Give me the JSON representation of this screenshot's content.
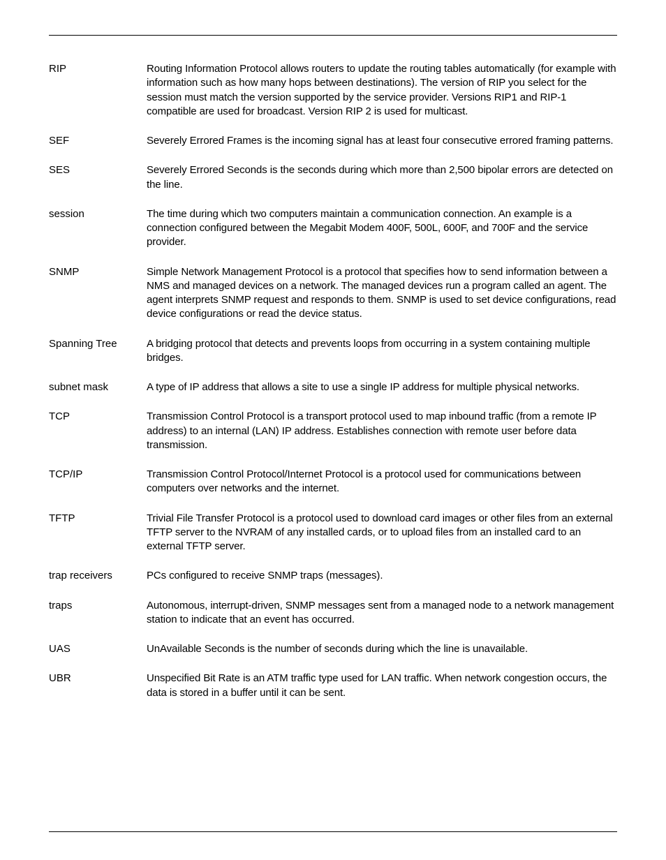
{
  "glossary": [
    {
      "term": "RIP",
      "definition": "Routing Information Protocol allows routers to update the routing tables automatically (for example with information such as how many hops between destinations). The version of RIP you select for the session must match the version supported by the service provider. Versions RIP1 and RIP-1 compatible are used for broadcast. Version RIP 2 is used for multicast."
    },
    {
      "term": "SEF",
      "definition": "Severely Errored Frames is the incoming signal has at least four consecutive errored framing patterns."
    },
    {
      "term": "SES",
      "definition": "Severely Errored Seconds is the seconds during which more than 2,500 bipolar errors are detected on the line."
    },
    {
      "term": "session",
      "definition": "The time during which two computers maintain a communication connection. An example is a connection configured between the Megabit Modem 400F, 500L, 600F, and 700F and the service provider."
    },
    {
      "term": "SNMP",
      "definition": "Simple Network Management Protocol is a protocol that specifies how to send information between a NMS and managed devices on a network. The managed devices run a program called an agent. The agent interprets SNMP request and responds to them. SNMP is used to set device configurations, read device configurations or read the device status."
    },
    {
      "term": "Spanning Tree",
      "definition": "A bridging protocol that detects and prevents loops from occurring in a system containing multiple bridges."
    },
    {
      "term": "subnet mask",
      "definition": "A type of IP address that allows a site to use a single IP address for multiple physical networks."
    },
    {
      "term": "TCP",
      "definition": "Transmission Control Protocol is a transport protocol used to map inbound traffic (from a remote IP address) to an internal (LAN) IP address. Establishes connection with remote user before data transmission."
    },
    {
      "term": "TCP/IP",
      "definition": "Transmission Control Protocol/Internet Protocol is a protocol used for communications between computers over networks and the internet."
    },
    {
      "term": "TFTP",
      "definition": "Trivial File Transfer Protocol is a protocol used to download card images or other files from an external TFTP server to the NVRAM of any installed cards, or to upload files from an installed card to an external TFTP server."
    },
    {
      "term": "trap receivers",
      "definition": "PCs configured to receive SNMP traps (messages)."
    },
    {
      "term": "traps",
      "definition": "Autonomous, interrupt-driven, SNMP messages sent from a managed node to a network management station to indicate that an event has occurred."
    },
    {
      "term": "UAS",
      "definition": "UnAvailable Seconds is the number of seconds during which the line is unavailable."
    },
    {
      "term": "UBR",
      "definition": "Unspecified Bit Rate is an ATM traffic type used for LAN traffic. When network congestion occurs, the data is stored in a buffer until it can be sent."
    }
  ]
}
